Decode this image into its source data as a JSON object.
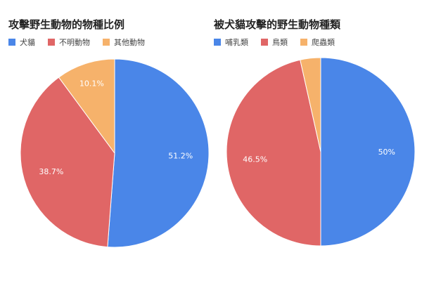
{
  "chart_data": [
    {
      "type": "pie",
      "title": "攻擊野生動物的物種比例",
      "legend_position": "top-left",
      "categories": [
        "犬貓",
        "不明動物",
        "其他動物"
      ],
      "values": [
        51.2,
        38.7,
        10.1
      ],
      "labels": [
        "51.2%",
        "38.7%",
        "10.1%"
      ],
      "colors": [
        "#4a86e8",
        "#e06666",
        "#f6b26b"
      ]
    },
    {
      "type": "pie",
      "title": "被犬貓攻擊的野生動物種類",
      "legend_position": "top-left",
      "categories": [
        "哺乳類",
        "鳥類",
        "爬蟲類"
      ],
      "values": [
        50,
        46.5,
        3.5
      ],
      "labels": [
        "50%",
        "46.5%",
        ""
      ],
      "colors": [
        "#4a86e8",
        "#e06666",
        "#f6b26b"
      ]
    }
  ]
}
